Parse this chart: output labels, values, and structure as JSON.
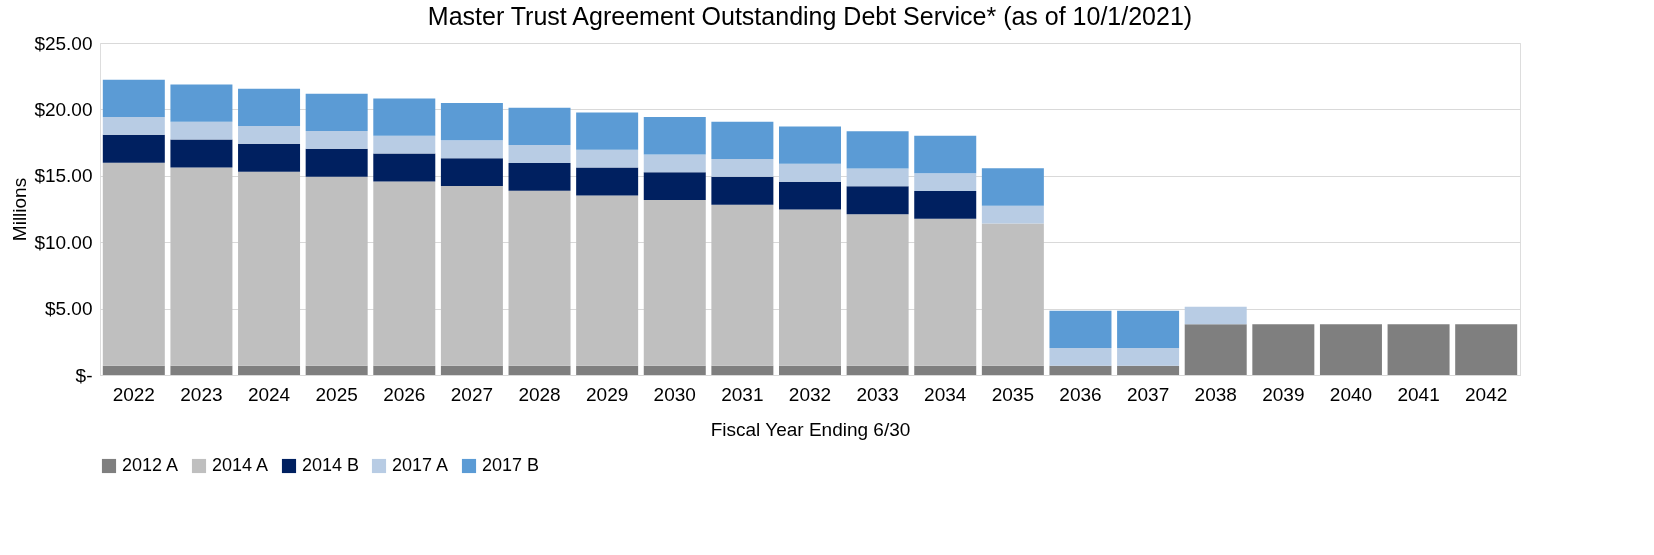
{
  "chart_data": {
    "type": "bar",
    "title": "Master Trust Agreement Outstanding Debt Service* (as of 10/1/2021)",
    "xlabel": "Fiscal Year Ending 6/30",
    "ylabel": "Millions",
    "categories": [
      "2022",
      "2023",
      "2024",
      "2025",
      "2026",
      "2027",
      "2028",
      "2029",
      "2030",
      "2031",
      "2032",
      "2033",
      "2034",
      "2035",
      "2036",
      "2037",
      "2038",
      "2039",
      "2040",
      "2041",
      "2042"
    ],
    "stacked": true,
    "grid": "y",
    "legend": "bottom",
    "ylim": [
      0,
      25
    ],
    "yticks": [
      {
        "value": 0,
        "label": "$-"
      },
      {
        "value": 5,
        "label": "$5.00"
      },
      {
        "value": 10,
        "label": "$10.00"
      },
      {
        "value": 15,
        "label": "$15.00"
      },
      {
        "value": 20,
        "label": "$20.00"
      },
      {
        "value": 25,
        "label": "$25.00"
      }
    ],
    "series": [
      {
        "name": "2012 A",
        "color": "#7f7f7f",
        "values": [
          0.7,
          0.7,
          0.7,
          0.7,
          0.7,
          0.7,
          0.7,
          0.7,
          0.7,
          0.7,
          0.7,
          0.7,
          0.7,
          0.7,
          0.7,
          0.7,
          3.83,
          3.83,
          3.83,
          3.83,
          3.83
        ]
      },
      {
        "name": "2014 A",
        "color": "#bfbfbf",
        "values": [
          15.29,
          14.93,
          14.61,
          14.23,
          13.88,
          13.53,
          13.17,
          12.82,
          12.47,
          12.12,
          11.76,
          11.41,
          11.06,
          10.71,
          null,
          null,
          null,
          null,
          null,
          null,
          null
        ]
      },
      {
        "name": "2014 B",
        "color": "#002060",
        "values": [
          2.1,
          2.1,
          2.1,
          2.1,
          2.1,
          2.1,
          2.1,
          2.1,
          2.1,
          2.1,
          2.1,
          2.1,
          2.1,
          null,
          null,
          null,
          null,
          null,
          null,
          null,
          null
        ]
      },
      {
        "name": "2017 A",
        "color": "#b8cce4",
        "values": [
          1.34,
          1.34,
          1.34,
          1.34,
          1.34,
          1.34,
          1.34,
          1.34,
          1.34,
          1.34,
          1.34,
          1.34,
          1.34,
          1.34,
          1.33,
          1.33,
          1.31,
          null,
          null,
          null,
          null
        ]
      },
      {
        "name": "2017 B",
        "color": "#5b9bd5",
        "values": [
          2.81,
          2.81,
          2.81,
          2.81,
          2.81,
          2.81,
          2.81,
          2.81,
          2.81,
          2.81,
          2.81,
          2.81,
          2.81,
          2.81,
          2.81,
          2.81,
          null,
          null,
          null,
          null,
          null
        ]
      }
    ]
  }
}
